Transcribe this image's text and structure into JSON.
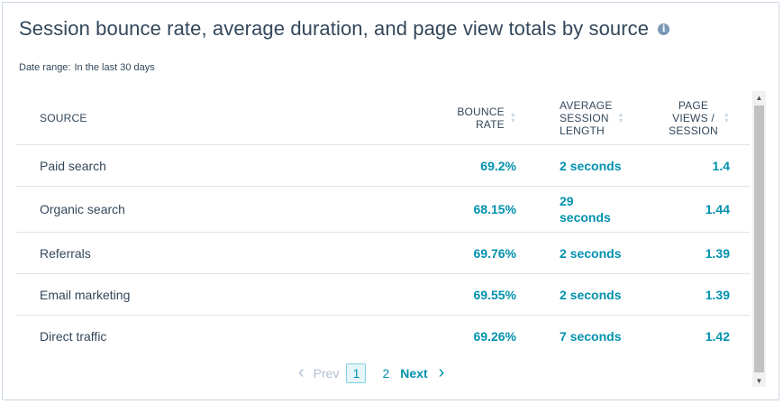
{
  "header": {
    "title": "Session bounce rate, average duration, and page view totals by source",
    "info_icon": "i",
    "date_range_label": "Date range:",
    "date_range_value": "In the last 30 days"
  },
  "table": {
    "columns": [
      {
        "line1": "SOURCE"
      },
      {
        "line1": "BOUNCE",
        "line2": "RATE"
      },
      {
        "line1": "AVERAGE",
        "line2": "SESSION",
        "line3": "LENGTH"
      },
      {
        "line1": "PAGE",
        "line2": "VIEWS /",
        "line3": "SESSION"
      }
    ],
    "rows": [
      {
        "source": "Paid search",
        "bounce": "69.2%",
        "session_a": "2 seconds",
        "session_b": "",
        "pv": "1.4"
      },
      {
        "source": "Organic search",
        "bounce": "68.15%",
        "session_a": "29",
        "session_b": "seconds",
        "pv": "1.44"
      },
      {
        "source": "Referrals",
        "bounce": "69.76%",
        "session_a": "2 seconds",
        "session_b": "",
        "pv": "1.39"
      },
      {
        "source": "Email marketing",
        "bounce": "69.55%",
        "session_a": "2 seconds",
        "session_b": "",
        "pv": "1.39"
      },
      {
        "source": "Direct traffic",
        "bounce": "69.26%",
        "session_a": "7 seconds",
        "session_b": "",
        "pv": "1.42"
      }
    ]
  },
  "pagination": {
    "prev_label": "Prev",
    "current_page": "1",
    "page_2": "2",
    "next_label": "Next"
  },
  "colors": {
    "accent": "#0091ae",
    "text": "#33475b",
    "border": "#dfe3eb"
  }
}
